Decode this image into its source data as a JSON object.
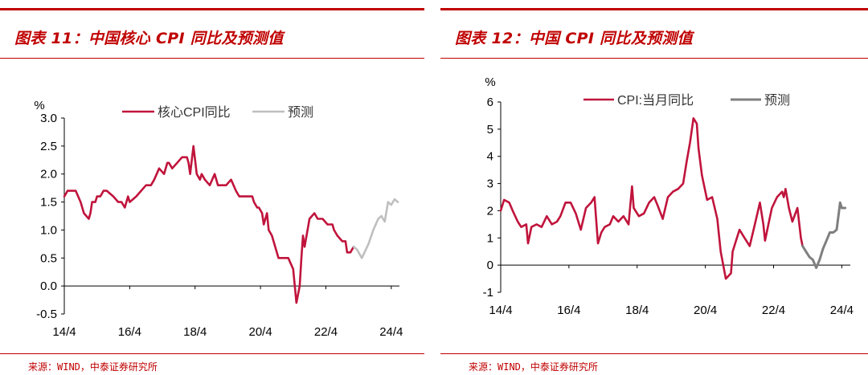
{
  "colors": {
    "accent": "#c00000",
    "cpi": "#c0143c",
    "forecast_left": "#bfbfbf",
    "forecast_right": "#7f7f7f",
    "axis": "#000000"
  },
  "left_panel": {
    "title": "图表 11：中国核心 CPI 同比及预测值",
    "source": "来源：WIND，中泰证券研究所"
  },
  "right_panel": {
    "title": "图表 12：中国 CPI 同比及预测值",
    "source": "来源：WIND，中泰证券研究所"
  },
  "chart_data": [
    {
      "type": "line",
      "title": "中国核心 CPI 同比及预测值",
      "ylabel": "%",
      "ylim": [
        -0.5,
        3.0
      ],
      "yticks": [
        "3.0",
        "2.5",
        "2.0",
        "1.5",
        "1.0",
        "0.5",
        "0.0",
        "-0.5"
      ],
      "xlim": [
        2014.25,
        2024.5
      ],
      "xticks": [
        {
          "x": 2014.25,
          "label": "14/4"
        },
        {
          "x": 2016.25,
          "label": "16/4"
        },
        {
          "x": 2018.25,
          "label": "18/4"
        },
        {
          "x": 2020.25,
          "label": "20/4"
        },
        {
          "x": 2022.25,
          "label": "22/4"
        },
        {
          "x": 2024.25,
          "label": "24/4"
        }
      ],
      "legend": [
        "核心CPI同比",
        "预测"
      ],
      "series": [
        {
          "name": "核心CPI同比",
          "x": [
            2014.25,
            2014.35,
            2014.45,
            2014.6,
            2014.75,
            2014.85,
            2015.0,
            2015.05,
            2015.1,
            2015.2,
            2015.25,
            2015.35,
            2015.45,
            2015.55,
            2015.75,
            2015.9,
            2016.0,
            2016.1,
            2016.2,
            2016.25,
            2016.45,
            2016.6,
            2016.75,
            2016.9,
            2017.0,
            2017.15,
            2017.3,
            2017.4,
            2017.45,
            2017.55,
            2017.7,
            2017.85,
            2017.95,
            2018.0,
            2018.05,
            2018.1,
            2018.2,
            2018.3,
            2018.4,
            2018.45,
            2018.55,
            2018.7,
            2018.85,
            2018.95,
            2019.0,
            2019.1,
            2019.2,
            2019.35,
            2019.5,
            2019.6,
            2019.75,
            2019.9,
            2020.0,
            2020.05,
            2020.15,
            2020.2,
            2020.3,
            2020.35,
            2020.45,
            2020.5,
            2020.6,
            2020.8,
            2020.9,
            2020.95,
            2021.0,
            2021.1,
            2021.25,
            2021.35,
            2021.45,
            2021.5,
            2021.55,
            2021.6,
            2021.75,
            2021.9,
            2022.0,
            2022.15,
            2022.3,
            2022.45,
            2022.5,
            2022.6,
            2022.75,
            2022.85,
            2022.9,
            2022.95,
            2023.0,
            2023.1
          ],
          "values": [
            1.6,
            1.7,
            1.7,
            1.7,
            1.5,
            1.3,
            1.2,
            1.3,
            1.5,
            1.5,
            1.6,
            1.6,
            1.7,
            1.7,
            1.6,
            1.5,
            1.5,
            1.4,
            1.6,
            1.5,
            1.6,
            1.7,
            1.8,
            1.8,
            1.9,
            2.1,
            2.0,
            2.2,
            2.2,
            2.1,
            2.2,
            2.3,
            2.3,
            2.3,
            2.2,
            2.0,
            2.5,
            2.0,
            1.9,
            2.0,
            1.9,
            1.8,
            2.0,
            1.8,
            1.8,
            1.8,
            1.8,
            1.9,
            1.7,
            1.6,
            1.6,
            1.6,
            1.6,
            1.5,
            1.4,
            1.4,
            1.3,
            1.1,
            1.3,
            1.0,
            0.9,
            0.5,
            0.5,
            0.5,
            0.5,
            0.5,
            0.3,
            -0.3,
            0.0,
            0.5,
            0.9,
            0.7,
            1.2,
            1.3,
            1.2,
            1.2,
            1.1,
            1.1,
            1.0,
            0.9,
            0.8,
            0.8,
            0.6,
            0.6,
            0.6,
            0.7
          ]
        },
        {
          "name": "预测",
          "x": [
            2023.1,
            2023.2,
            2023.35,
            2023.55,
            2023.7,
            2023.85,
            2023.95,
            2024.05,
            2024.15,
            2024.25,
            2024.35,
            2024.45
          ],
          "values": [
            0.7,
            0.65,
            0.5,
            0.75,
            1.0,
            1.2,
            1.25,
            1.15,
            1.5,
            1.45,
            1.55,
            1.5
          ]
        }
      ]
    },
    {
      "type": "line",
      "title": "中国 CPI 同比及预测值",
      "ylabel": "%",
      "ylim": [
        -1,
        6
      ],
      "yticks": [
        "6",
        "5",
        "4",
        "3",
        "2",
        "1",
        "0",
        "-1"
      ],
      "xlim": [
        2014.25,
        2024.5
      ],
      "xticks": [
        {
          "x": 2014.25,
          "label": "14/4"
        },
        {
          "x": 2016.25,
          "label": "16/4"
        },
        {
          "x": 2018.25,
          "label": "18/4"
        },
        {
          "x": 2020.25,
          "label": "20/4"
        },
        {
          "x": 2022.25,
          "label": "22/4"
        },
        {
          "x": 2024.25,
          "label": "24/4"
        }
      ],
      "legend": [
        "CPI:当月同比",
        "预测"
      ],
      "series": [
        {
          "name": "CPI:当月同比",
          "x": [
            2014.25,
            2014.35,
            2014.5,
            2014.6,
            2014.75,
            2014.85,
            2015.0,
            2015.05,
            2015.15,
            2015.3,
            2015.45,
            2015.6,
            2015.75,
            2015.9,
            2016.0,
            2016.15,
            2016.3,
            2016.45,
            2016.6,
            2016.75,
            2016.9,
            2017.0,
            2017.1,
            2017.2,
            2017.3,
            2017.45,
            2017.55,
            2017.7,
            2017.85,
            2018.0,
            2018.1,
            2018.15,
            2018.3,
            2018.45,
            2018.6,
            2018.75,
            2018.85,
            2019.0,
            2019.15,
            2019.3,
            2019.45,
            2019.6,
            2019.7,
            2019.8,
            2019.9,
            2020.0,
            2020.05,
            2020.15,
            2020.3,
            2020.45,
            2020.6,
            2020.7,
            2020.85,
            2021.0,
            2021.05,
            2021.15,
            2021.25,
            2021.4,
            2021.55,
            2021.7,
            2021.85,
            2021.95,
            2022.0,
            2022.1,
            2022.2,
            2022.35,
            2022.5,
            2022.55,
            2022.6,
            2022.7,
            2022.8,
            2022.95,
            2023.05,
            2023.1
          ],
          "values": [
            2.0,
            2.4,
            2.3,
            2.0,
            1.6,
            1.4,
            1.5,
            0.8,
            1.4,
            1.5,
            1.4,
            1.8,
            1.5,
            1.6,
            1.8,
            2.3,
            2.3,
            1.9,
            1.3,
            2.1,
            2.3,
            2.5,
            0.8,
            1.2,
            1.4,
            1.5,
            1.8,
            1.6,
            1.8,
            1.5,
            2.9,
            2.1,
            1.8,
            1.9,
            2.3,
            2.5,
            2.2,
            1.7,
            2.5,
            2.7,
            2.8,
            3.0,
            3.8,
            4.5,
            5.4,
            5.2,
            4.3,
            3.3,
            2.4,
            2.5,
            1.7,
            0.5,
            -0.5,
            -0.3,
            0.5,
            0.9,
            1.3,
            1.0,
            0.7,
            1.5,
            2.3,
            1.5,
            0.9,
            1.5,
            2.1,
            2.5,
            2.7,
            2.5,
            2.8,
            2.1,
            1.6,
            2.1,
            1.0,
            0.7
          ]
        },
        {
          "name": "预测",
          "x": [
            2023.1,
            2023.2,
            2023.3,
            2023.4,
            2023.5,
            2023.6,
            2023.7,
            2023.8,
            2023.9,
            2024.0,
            2024.1,
            2024.2,
            2024.25,
            2024.35
          ],
          "values": [
            0.7,
            0.5,
            0.3,
            0.2,
            -0.1,
            0.2,
            0.6,
            0.9,
            1.2,
            1.2,
            1.3,
            2.3,
            2.1,
            2.1
          ]
        }
      ]
    }
  ]
}
